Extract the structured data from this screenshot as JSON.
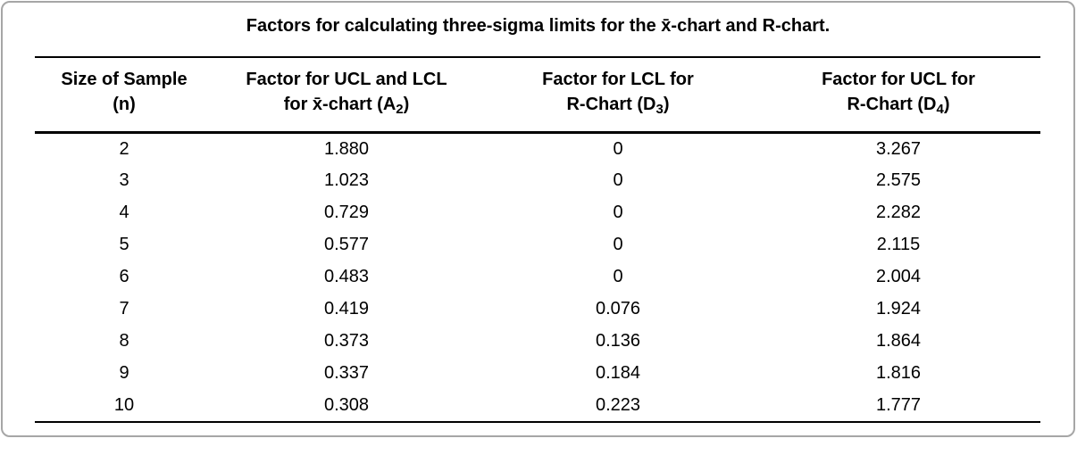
{
  "title": "Factors for calculating three-sigma limits for the x̄-chart and R-chart.",
  "table": {
    "columns": [
      {
        "line1": "Size of Sample",
        "line2": "(n)"
      },
      {
        "line1": "Factor for UCL and LCL",
        "line2_pre": "for x̄-chart (A",
        "sub": "2",
        "line2_post": ")"
      },
      {
        "line1": "Factor for LCL for",
        "line2_pre": "R-Chart (D",
        "sub": "3",
        "line2_post": ")"
      },
      {
        "line1": "Factor for UCL for",
        "line2_pre": "R-Chart (D",
        "sub": "4",
        "line2_post": ")"
      }
    ],
    "rows": [
      [
        "2",
        "1.880",
        "0",
        "3.267"
      ],
      [
        "3",
        "1.023",
        "0",
        "2.575"
      ],
      [
        "4",
        "0.729",
        "0",
        "2.282"
      ],
      [
        "5",
        "0.577",
        "0",
        "2.115"
      ],
      [
        "6",
        "0.483",
        "0",
        "2.004"
      ],
      [
        "7",
        "0.419",
        "0.076",
        "1.924"
      ],
      [
        "8",
        "0.373",
        "0.136",
        "1.864"
      ],
      [
        "9",
        "0.337",
        "0.184",
        "1.816"
      ],
      [
        "10",
        "0.308",
        "0.223",
        "1.777"
      ]
    ]
  },
  "colors": {
    "text": "#000000",
    "rule": "#000000",
    "card_border": "#a6a6a6",
    "background": "#ffffff"
  }
}
